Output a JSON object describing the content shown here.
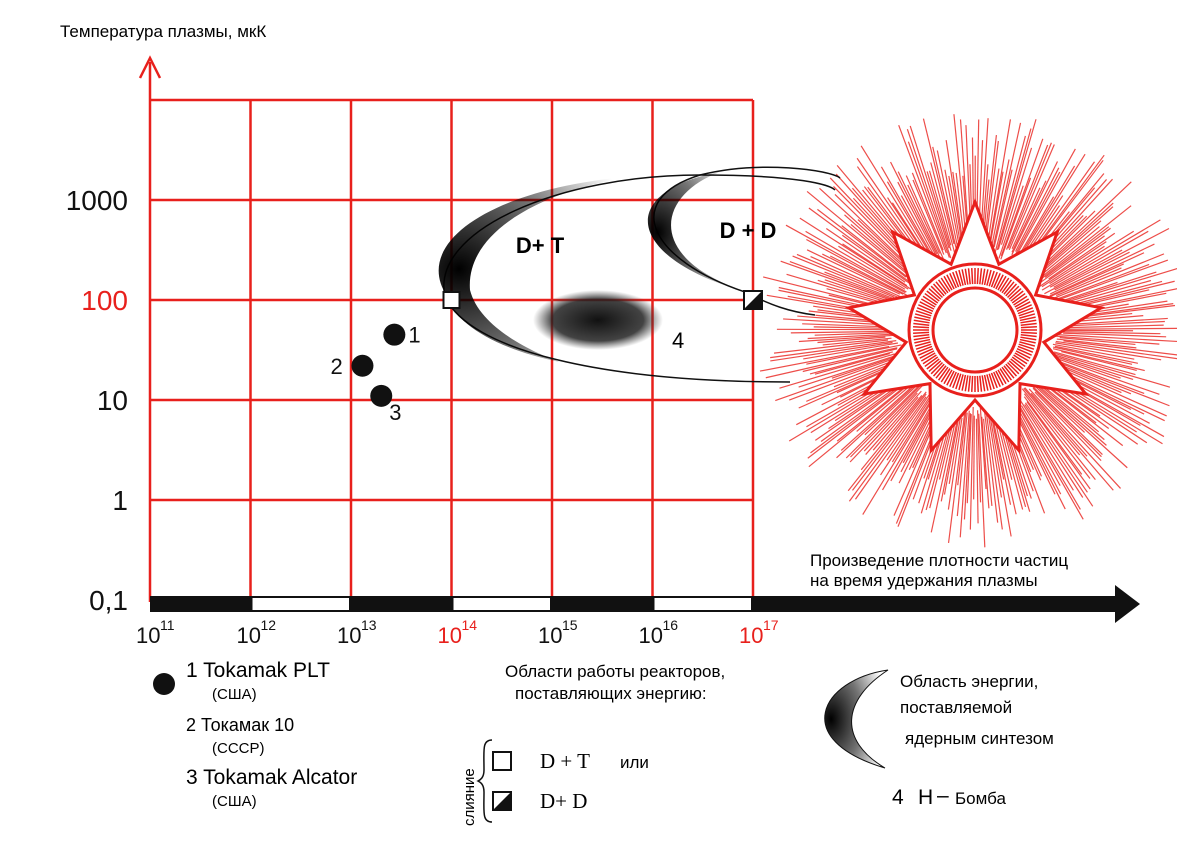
{
  "chart_data": {
    "type": "scatter",
    "ylabel": "Температура плазмы, мкК",
    "xlabel": "Произведение плотности частиц на время удержания плазмы",
    "xlabel_lines": [
      "Произведение плотности частиц",
      "на время удержания плазмы"
    ],
    "x_scale": "log",
    "y_scale": "log",
    "xlim": [
      100000000000.0,
      1e+17
    ],
    "ylim": [
      0.1,
      10000
    ],
    "y_ticks": [
      {
        "value": 0.1,
        "label": "0,1"
      },
      {
        "value": 1,
        "label": "1"
      },
      {
        "value": 10,
        "label": "10"
      },
      {
        "value": 100,
        "label": "100",
        "highlight": true
      },
      {
        "value": 1000,
        "label": "1000"
      }
    ],
    "x_ticks": [
      {
        "value": 100000000000.0,
        "base": "10",
        "exp": "11"
      },
      {
        "value": 1000000000000.0,
        "base": "10",
        "exp": "12"
      },
      {
        "value": 10000000000000.0,
        "base": "10",
        "exp": "13"
      },
      {
        "value": 100000000000000.0,
        "base": "10",
        "exp": "14",
        "highlight": true
      },
      {
        "value": 1000000000000000.0,
        "base": "10",
        "exp": "15"
      },
      {
        "value": 1e+16,
        "base": "10",
        "exp": "16"
      },
      {
        "value": 1e+17,
        "base": "10",
        "exp": "17",
        "highlight": true
      }
    ],
    "grid": true,
    "points": [
      {
        "label": "1",
        "x": 27000000000000.0,
        "y": 45
      },
      {
        "label": "2",
        "x": 13000000000000.0,
        "y": 22
      },
      {
        "label": "3",
        "x": 20000000000000.0,
        "y": 11
      }
    ],
    "regions": [
      {
        "label": "D+ T",
        "marker_x": 100000000000000.0,
        "marker_y": 100
      },
      {
        "label": "D + D",
        "marker_x": 1e+17,
        "marker_y": 100
      }
    ],
    "hbomb": {
      "label": "4",
      "x": 1500000000000000.0,
      "y": 60
    }
  },
  "legend": {
    "tokamaks": [
      {
        "name": "1 Tokamak PLT",
        "country": "(США)"
      },
      {
        "name": "2 Токамак 10",
        "country": "(СССР)"
      },
      {
        "name": "3 Tokamak Alcator",
        "country": "(США)"
      }
    ],
    "regions_title": [
      "Области работы реакторов,",
      "поставляющих энергию:"
    ],
    "fusion_label": "слияние",
    "dt_label": "D + T",
    "or_label": "или",
    "dd_label": "D+ D",
    "energy_area": [
      "Область энергии,",
      "поставляемой",
      "ядерным синтезом"
    ],
    "hbomb_legend": {
      "num": "4",
      "text": "H",
      "dash": "–",
      "word": "Бомба"
    }
  },
  "colors": {
    "grid": "#e8201c",
    "ink": "#111111",
    "highlight": "#e8201c"
  }
}
